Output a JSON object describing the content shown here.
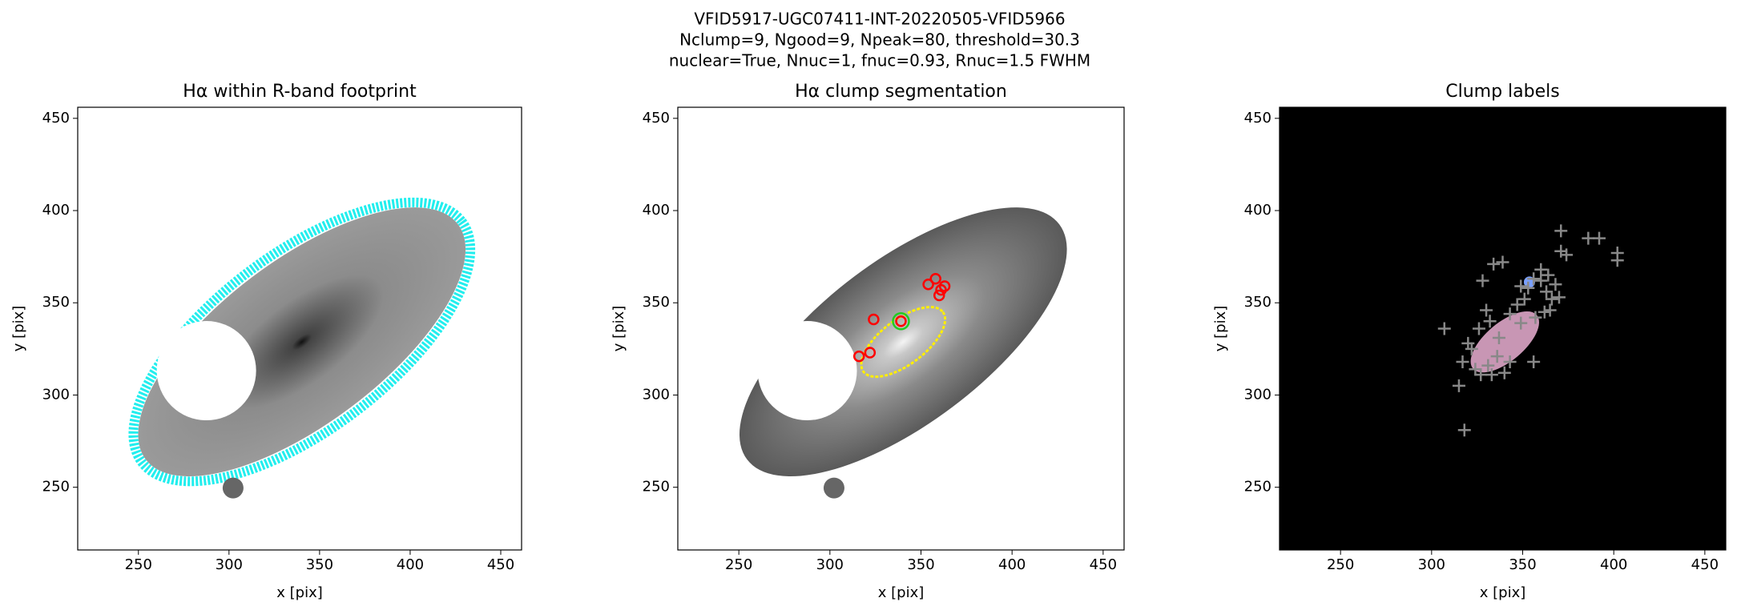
{
  "figure_title": [
    "VFID5917-UGC07411-INT-20220505-VFID5966",
    "Nclump=9, Ngood=9, Npeak=80, threshold=30.3",
    "nuclear=True, Nnuc=1, fnuc=0.93, Rnuc=1.5 FWHM"
  ],
  "chart_data": [
    {
      "type": "image",
      "title": "Hα within R-band footprint",
      "xlabel": "x [pix]",
      "ylabel": "y [pix]",
      "xlim": [
        216.5,
        461.5
      ],
      "ylim": [
        216,
        456
      ],
      "xticks": [
        250,
        300,
        350,
        400,
        450
      ],
      "yticks": [
        250,
        300,
        350,
        400,
        450
      ],
      "background": "#ffffff",
      "contour_color": "#22eeee"
    },
    {
      "type": "image",
      "title": "Hα clump segmentation",
      "xlabel": "x [pix]",
      "ylabel": "y [pix]",
      "xlim": [
        216.5,
        461.5
      ],
      "ylim": [
        216,
        456
      ],
      "xticks": [
        250,
        300,
        350,
        400,
        450
      ],
      "yticks": [
        250,
        300,
        350,
        400,
        450
      ],
      "background": "#ffffff",
      "contour_color": "#ffee00",
      "points": {
        "marker": "circle",
        "color": "#ff0000",
        "x": [
          324,
          316,
          322,
          339,
          354,
          358,
          360,
          361,
          363
        ],
        "y": [
          341,
          321,
          323,
          340,
          360,
          363,
          354,
          357,
          359
        ]
      },
      "nucleus": {
        "x": 339,
        "y": 340,
        "color": "#22cc22"
      }
    },
    {
      "type": "image",
      "title": "Clump labels",
      "xlabel": "x [pix]",
      "ylabel": "y [pix]",
      "xlim": [
        216.5,
        461.5
      ],
      "ylim": [
        216,
        456
      ],
      "xticks": [
        250,
        300,
        350,
        400,
        450
      ],
      "yticks": [
        250,
        300,
        350,
        400,
        450
      ],
      "background": "#000000",
      "points": {
        "marker": "plus",
        "color": "#888888",
        "x": [
          307,
          318,
          315,
          317,
          320,
          322,
          324,
          327,
          331,
          333,
          336,
          340,
          343,
          356,
          330,
          328,
          334,
          339,
          349,
          353,
          356,
          360,
          364,
          363,
          366,
          370,
          371,
          371,
          374,
          386,
          392,
          402,
          402,
          357,
          362,
          349,
          343,
          337,
          326,
          332,
          347,
          351,
          360,
          365,
          368
        ],
        "y": [
          336,
          281,
          305,
          318,
          328,
          325,
          314,
          311,
          316,
          311,
          321,
          312,
          318,
          318,
          346,
          362,
          371,
          372,
          359,
          358,
          363,
          368,
          365,
          356,
          352,
          353,
          378,
          389,
          376,
          385,
          385,
          377,
          373,
          342,
          345,
          339,
          344,
          331,
          336,
          340,
          349,
          352,
          362,
          346,
          360
        ]
      }
    }
  ]
}
